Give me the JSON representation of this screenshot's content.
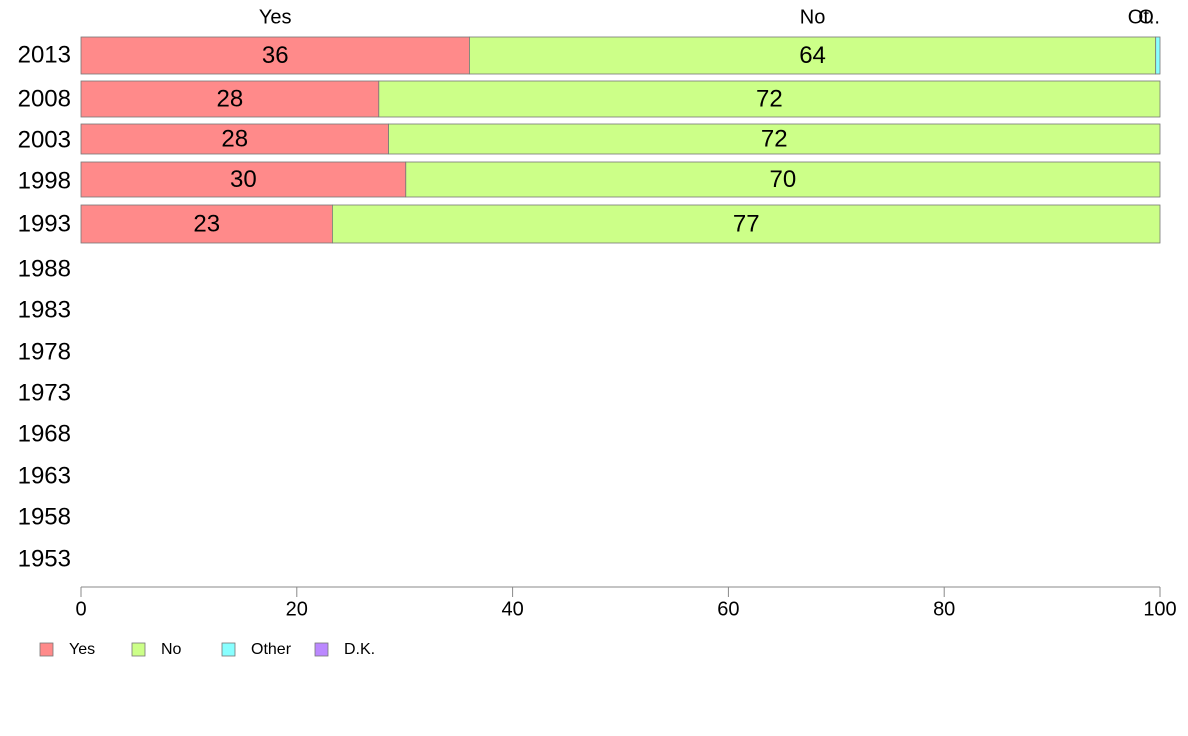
{
  "chart_data": {
    "type": "bar",
    "orientation": "horizontal",
    "stacked": true,
    "categories": [
      "2013",
      "2008",
      "2003",
      "1998",
      "1993",
      "1988",
      "1983",
      "1978",
      "1973",
      "1968",
      "1963",
      "1958",
      "1953"
    ],
    "series": [
      {
        "name": "Yes",
        "color": "#ff8a8a",
        "values": [
          36,
          27.6,
          28.5,
          30.1,
          23.3,
          null,
          null,
          null,
          null,
          null,
          null,
          null,
          null
        ]
      },
      {
        "name": "No",
        "color": "#ccff88",
        "values": [
          63.6,
          72.4,
          71.5,
          69.9,
          76.7,
          null,
          null,
          null,
          null,
          null,
          null,
          null,
          null
        ]
      },
      {
        "name": "Other",
        "color": "#88ffff",
        "values": [
          0.4,
          0,
          0,
          0,
          0,
          null,
          null,
          null,
          null,
          null,
          null,
          null,
          null
        ]
      },
      {
        "name": "D.K.",
        "color": "#bb88ff",
        "values": [
          0,
          0,
          0,
          0,
          0,
          null,
          null,
          null,
          null,
          null,
          null,
          null,
          null
        ]
      }
    ],
    "data_labels": [
      [
        "36",
        "64"
      ],
      [
        "28",
        "72"
      ],
      [
        "28",
        "72"
      ],
      [
        "30",
        "70"
      ],
      [
        "23",
        "77"
      ]
    ],
    "top_labels": [
      "Yes",
      "No",
      "O",
      "Ot.."
    ],
    "xlim": [
      0,
      100
    ],
    "xticks": [
      "0",
      "20",
      "40",
      "60",
      "80",
      "100"
    ],
    "legend_position": "bottom-left",
    "grid": false
  }
}
